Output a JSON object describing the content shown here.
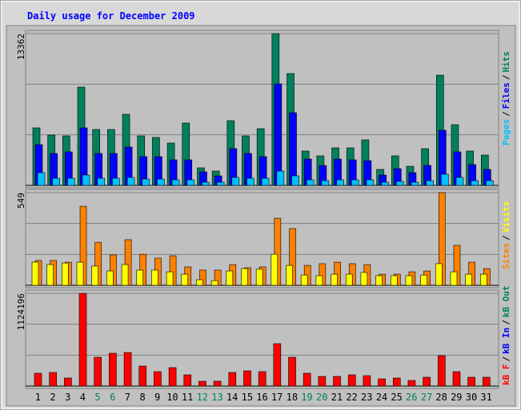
{
  "chart_data": [
    {
      "type": "bar",
      "title": "Daily usage for December 2009",
      "legend_separator": "/",
      "ylim": [
        0,
        13362
      ],
      "yticks": [
        13362
      ],
      "grid_divisions": 3,
      "series": [
        {
          "name": "Pages",
          "color": "#00c0ff",
          "values": [
            1125,
            633,
            633,
            914,
            633,
            633,
            703,
            563,
            563,
            492,
            492,
            281,
            281,
            703,
            633,
            633,
            1266,
            844,
            492,
            422,
            492,
            492,
            492,
            281,
            352,
            281,
            422,
            985,
            703,
            422,
            422
          ]
        },
        {
          "name": "Files",
          "color": "#0000ff",
          "values": [
            3587,
            2813,
            2954,
            5064,
            2813,
            2813,
            3376,
            2532,
            2532,
            2251,
            2251,
            1196,
            844,
            3235,
            2813,
            2532,
            8932,
            6400,
            2321,
            1758,
            2321,
            2251,
            2180,
            914,
            1477,
            1125,
            1758,
            4853,
            2954,
            1829,
            1407
          ]
        },
        {
          "name": "Hits",
          "color": "#00805c",
          "values": [
            5064,
            4431,
            4360,
            8650,
            4923,
            4923,
            6259,
            4360,
            4220,
            3727,
            5486,
            1547,
            1266,
            5697,
            4360,
            4993,
            13362,
            9846,
            3024,
            2602,
            3306,
            3306,
            4009,
            1407,
            2602,
            1688,
            3235,
            9705,
            5345,
            3024,
            2672
          ]
        }
      ]
    },
    {
      "type": "bar",
      "ylim": [
        0,
        549
      ],
      "yticks": [
        549
      ],
      "grid_divisions": 3,
      "series": [
        {
          "name": "Sites",
          "color": "#ff8000",
          "values": [
            147,
            147,
            137,
            468,
            255,
            180,
            270,
            184,
            161,
            175,
            109,
            90,
            90,
            123,
            104,
            109,
            397,
            336,
            118,
            128,
            137,
            128,
            123,
            66,
            66,
            80,
            85,
            549,
            237,
            137,
            99
          ]
        },
        {
          "name": "Visits",
          "color": "#ffff00",
          "values": [
            137,
            123,
            132,
            137,
            114,
            85,
            123,
            90,
            90,
            80,
            66,
            33,
            28,
            85,
            99,
            95,
            184,
            118,
            61,
            57,
            66,
            66,
            76,
            57,
            57,
            57,
            61,
            128,
            80,
            66,
            66
          ]
        }
      ]
    },
    {
      "type": "bar",
      "ylim": [
        0,
        1124196
      ],
      "yticks": [
        1124196
      ],
      "grid_divisions": 3,
      "categories": [
        "1",
        "2",
        "3",
        "4",
        "5",
        "6",
        "7",
        "8",
        "9",
        "10",
        "11",
        "12",
        "13",
        "14",
        "15",
        "16",
        "17",
        "18",
        "19",
        "20",
        "21",
        "22",
        "23",
        "24",
        "25",
        "26",
        "27",
        "28",
        "29",
        "30",
        "31"
      ],
      "label_colors": [
        "#000000",
        "#000000",
        "#000000",
        "#000000",
        "#00805c",
        "#00805c",
        "#000000",
        "#000000",
        "#000000",
        "#000000",
        "#000000",
        "#00805c",
        "#00805c",
        "#000000",
        "#000000",
        "#000000",
        "#000000",
        "#000000",
        "#00805c",
        "#00805c",
        "#000000",
        "#000000",
        "#000000",
        "#000000",
        "#000000",
        "#00805c",
        "#00805c",
        "#000000",
        "#000000",
        "#000000",
        "#000000"
      ],
      "series": [
        {
          "name": "kB F",
          "color": "#ff0000",
          "values": [
            155056,
            164747,
            96910,
            1124196,
            348876,
            397331,
            407022,
            242275,
            174438,
            222893,
            135674,
            58146,
            58146,
            164747,
            184129,
            174438,
            513623,
            348876,
            155056,
            116292,
            116292,
            135674,
            125983,
            87219,
            96910,
            67837,
            106601,
            368258,
            174438,
            106601,
            106601
          ]
        }
      ],
      "legend_only": [
        {
          "name": "kB In",
          "color": "#0000ff"
        },
        {
          "name": "kB Out",
          "color": "#00805c"
        }
      ]
    }
  ]
}
